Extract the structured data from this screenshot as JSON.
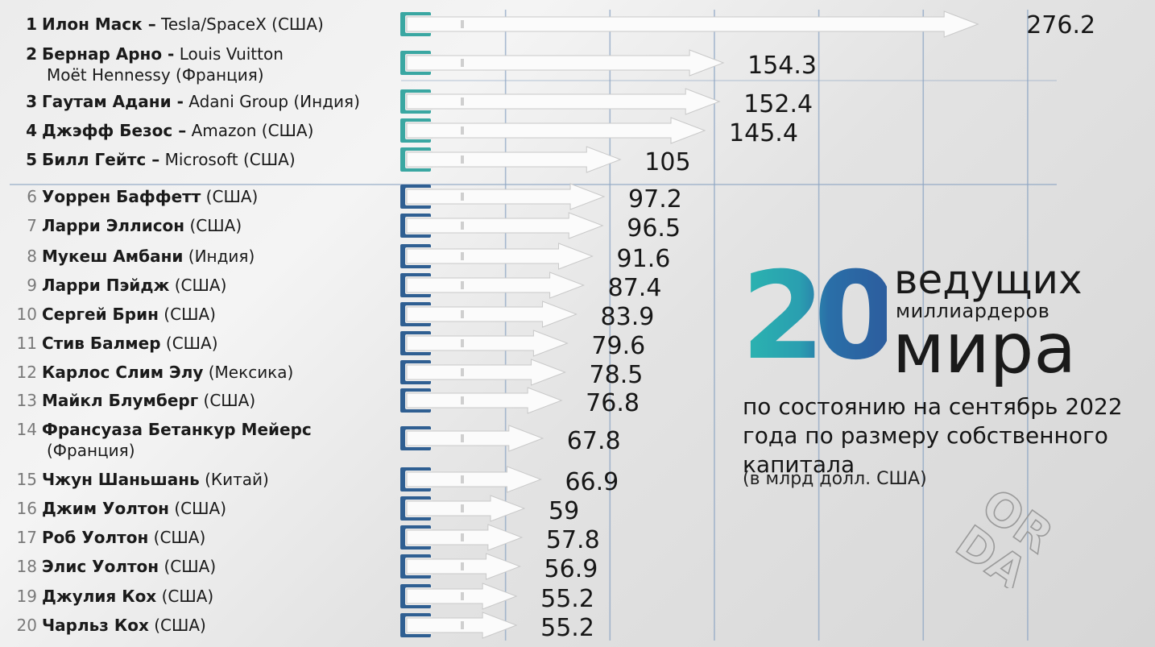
{
  "chart_data": {
    "type": "bar",
    "orientation": "horizontal",
    "title": "20 ведущих миллиардеров мира",
    "subtitle": "по состоянию на сентябрь 2022 года по размеру собственного капитала",
    "unit": "(в млрд долл. США)",
    "xlim": [
      0,
      290
    ],
    "grid": true,
    "colors": {
      "top5_cap": "#3aa7a2",
      "rest_cap": "#2f5f92",
      "arrow": "#fbfbfb",
      "grid": "#8ea6c4"
    },
    "rows": [
      {
        "rank": "1",
        "name": "Илон Маск –",
        "rest": " Tesla/SpaceX (США)",
        "value": 276.2,
        "label": "276.2"
      },
      {
        "rank": "2",
        "name": "Бернар Арно -",
        "rest": " Louis Vuitton",
        "rest2": "Moët Hennessy (Франция)",
        "value": 154.3,
        "label": "154.3"
      },
      {
        "rank": "3",
        "name": "Гаутам Адани -",
        "rest": " Adani Group (Индия)",
        "value": 152.4,
        "label": "152.4"
      },
      {
        "rank": "4",
        "name": "Джэфф Безос –",
        "rest": " Amazon (США)",
        "value": 145.4,
        "label": "145.4"
      },
      {
        "rank": "5",
        "name": "Билл Гейтс –",
        "rest": " Microsoft (США)",
        "value": 105,
        "label": "105"
      },
      {
        "rank": "6",
        "name": "Уоррен Баффетт",
        "rest": " (США)",
        "value": 97.2,
        "label": "97.2"
      },
      {
        "rank": "7",
        "name": "Ларри Эллисон",
        "rest": " (США)",
        "value": 96.5,
        "label": "96.5"
      },
      {
        "rank": "8",
        "name": "Мукеш Амбани",
        "rest": " (Индия)",
        "value": 91.6,
        "label": "91.6"
      },
      {
        "rank": "9",
        "name": "Ларри Пэйдж",
        "rest": " (США)",
        "value": 87.4,
        "label": "87.4"
      },
      {
        "rank": "10",
        "name": "Сергей Брин",
        "rest": " (США)",
        "value": 83.9,
        "label": "83.9"
      },
      {
        "rank": "11",
        "name": "Стив Балмер",
        "rest": " (США)",
        "value": 79.6,
        "label": "79.6"
      },
      {
        "rank": "12",
        "name": "Карлос Слим Элу",
        "rest": " (Мексика)",
        "value": 78.5,
        "label": "78.5"
      },
      {
        "rank": "13",
        "name": "Майкл Блумберг",
        "rest": " (США)",
        "value": 76.8,
        "label": "76.8"
      },
      {
        "rank": "14",
        "name": "Франсуаза Бетанкур Мейерс",
        "rest": "",
        "rest2": "(Франция)",
        "value": 67.8,
        "label": "67.8"
      },
      {
        "rank": "15",
        "name": "Чжун Шаньшань",
        "rest": " (Китай)",
        "value": 66.9,
        "label": "66.9"
      },
      {
        "rank": "16",
        "name": "Джим Уолтон",
        "rest": " (США)",
        "value": 59,
        "label": "59"
      },
      {
        "rank": "17",
        "name": "Роб Уолтон",
        "rest": " (США)",
        "value": 57.8,
        "label": "57.8"
      },
      {
        "rank": "18",
        "name": "Элис Уолтон",
        "rest": " (США)",
        "value": 56.9,
        "label": "56.9"
      },
      {
        "rank": "19",
        "name": "Джулия Кох",
        "rest": " (США)",
        "value": 55.2,
        "label": "55.2"
      },
      {
        "rank": "20",
        "name": "Чарльз Кох",
        "rest": " (США)",
        "value": 55.2,
        "label": "55.2"
      }
    ]
  },
  "headline": {
    "number": "20",
    "word1": "ведущих",
    "word2": "миллиардеров",
    "word3": "мира"
  },
  "subtitle_text": "по состоянию на сентябрь 2022 года по размеру собственного капитала",
  "unit_text": "(в млрд долл. США)",
  "watermark": {
    "line1": "OR",
    "line2": "DA"
  }
}
